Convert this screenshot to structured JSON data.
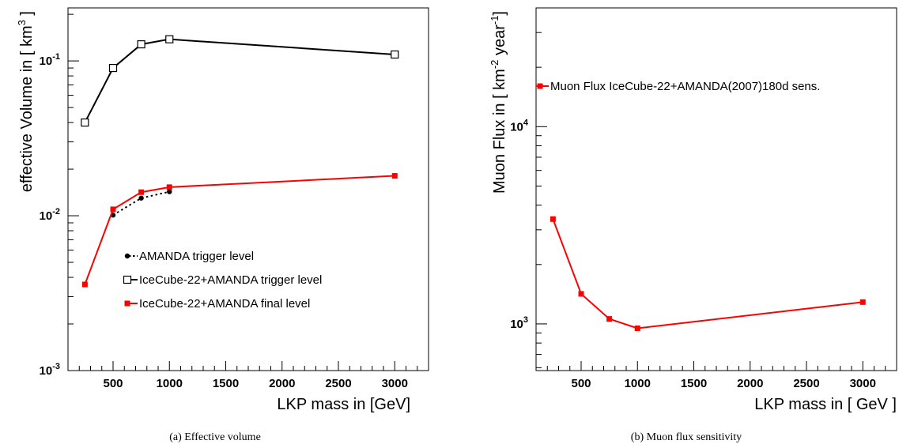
{
  "chart_data": [
    {
      "type": "line",
      "caption": "(a) Effective volume",
      "xlabel": "LKP mass in [GeV]",
      "ylabel_main": "effective Volume in [ km",
      "ylabel_sup": "3",
      "ylabel_end": " ]",
      "xlim": [
        100,
        3300
      ],
      "ylim": [
        0.001,
        0.22
      ],
      "yscale": "log",
      "xticks": [
        500,
        1000,
        1500,
        2000,
        2500,
        3000
      ],
      "xtick_labels": [
        "500",
        "1000",
        "1500",
        "2000",
        "2500",
        "3000"
      ],
      "yticks": [
        0.001,
        0.01,
        0.1
      ],
      "ytick_base": "10",
      "ytick_exps": [
        "-3",
        "-2",
        "-1"
      ],
      "legend_position": "center",
      "series": [
        {
          "name": "AMANDA trigger level",
          "x": [
            500,
            750,
            1000
          ],
          "y": [
            0.0101,
            0.013,
            0.0143
          ],
          "color": "#000000",
          "dash": "dotted",
          "marker": "circle"
        },
        {
          "name": "IceCube-22+AMANDA trigger level",
          "x": [
            250,
            500,
            750,
            1000,
            3000
          ],
          "y": [
            0.04,
            0.09,
            0.128,
            0.138,
            0.11
          ],
          "color": "#000000",
          "dash": "solid",
          "marker": "open-square"
        },
        {
          "name": "IceCube-22+AMANDA final level",
          "x": [
            250,
            500,
            750,
            1000,
            3000
          ],
          "y": [
            0.0036,
            0.011,
            0.0142,
            0.0153,
            0.0181
          ],
          "color": "#ff0000",
          "dash": "solid",
          "marker": "filled-square"
        }
      ]
    },
    {
      "type": "line",
      "caption": "(b) Muon flux sensitivity",
      "xlabel": "LKP mass in  [ GeV ]",
      "ylabel_main": "Muon Flux in [ km",
      "ylabel_sup": "-2",
      "ylabel_mid": " year",
      "ylabel_sup2": "-1",
      "ylabel_end": "]",
      "xlim": [
        100,
        3300
      ],
      "ylim": [
        580,
        40000
      ],
      "yscale": "log",
      "xticks": [
        500,
        1000,
        1500,
        2000,
        2500,
        3000
      ],
      "xtick_labels": [
        "500",
        "1000",
        "1500",
        "2000",
        "2500",
        "3000"
      ],
      "yticks": [
        1000,
        10000
      ],
      "ytick_base": "10",
      "ytick_exps": [
        "3",
        "4"
      ],
      "legend_position": "top-left",
      "series": [
        {
          "name": "Muon Flux IceCube-22+AMANDA(2007)180d sens.",
          "x": [
            250,
            500,
            750,
            1000,
            3000
          ],
          "y": [
            3400,
            1420,
            1060,
            950,
            1290
          ],
          "color": "#ff0000",
          "dash": "solid",
          "marker": "filled-square"
        }
      ]
    }
  ]
}
